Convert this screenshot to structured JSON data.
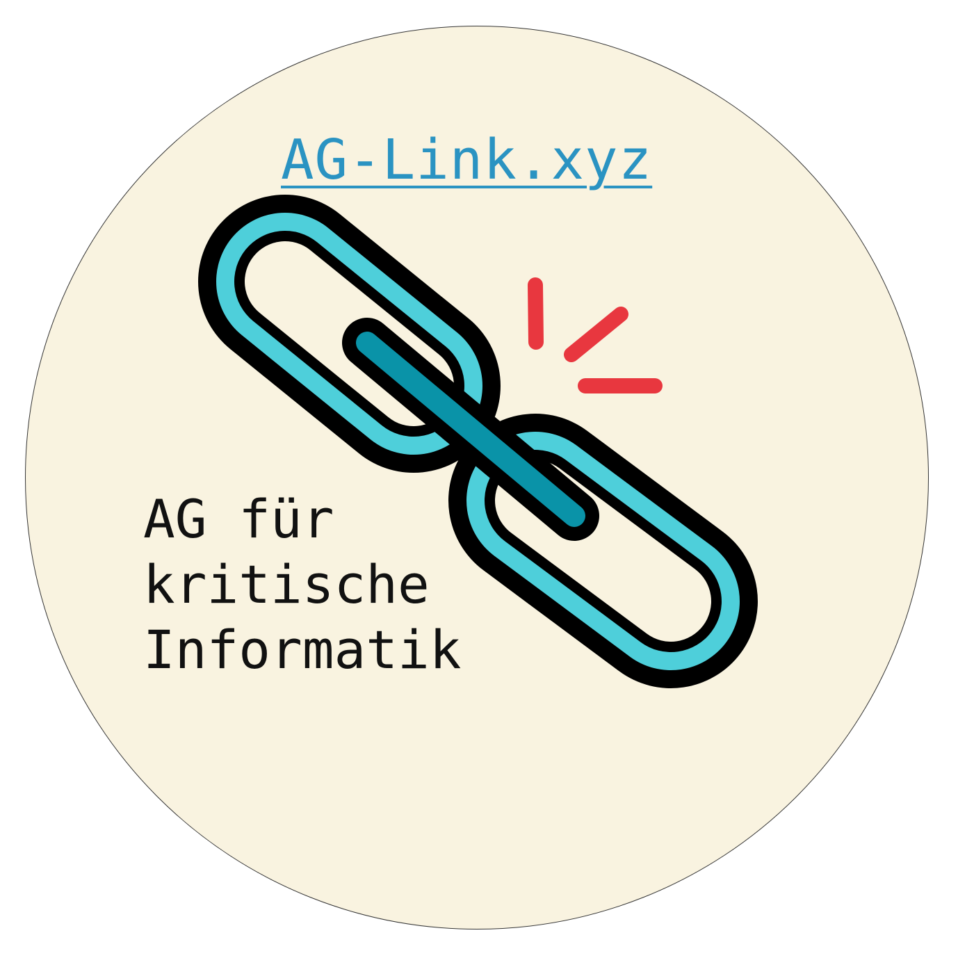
{
  "badge": {
    "background_color": "#f9f3e0",
    "border_color": "#333333"
  },
  "link": {
    "text": "AG-Link.xyz",
    "color": "#2a93c2"
  },
  "logo": {
    "icon": "broken-chain-link-icon",
    "link_fill_color": "#4ecfda",
    "link_inner_color": "#0a93a8",
    "outline_color": "#000000",
    "spark_color": "#e8373f"
  },
  "org_name": {
    "line1": "AG für",
    "line2": "kritische",
    "line3": "Informatik"
  }
}
